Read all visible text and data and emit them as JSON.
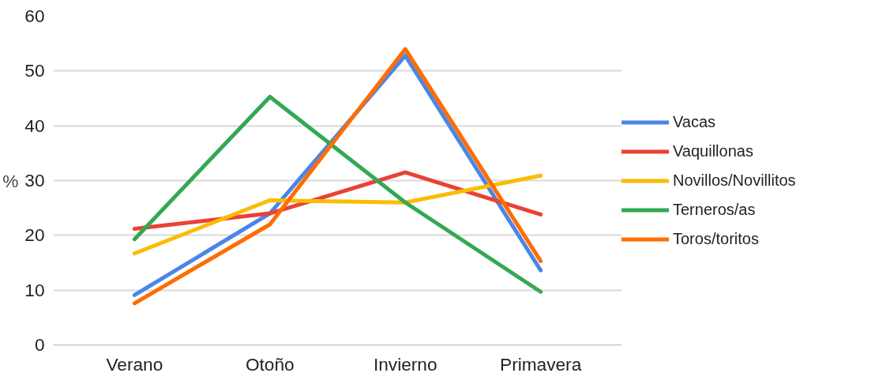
{
  "chart_data": {
    "type": "line",
    "ylabel": "%",
    "categories": [
      "Verano",
      "Otoño",
      "Invierno",
      "Primavera"
    ],
    "ylim": [
      0,
      60
    ],
    "yticks": [
      0,
      10,
      20,
      30,
      40,
      50,
      60
    ],
    "grid": "y",
    "legend": "right",
    "marker": "none",
    "line_style": "solid",
    "series": [
      {
        "name": "Vacas",
        "color": "#4a86e8",
        "values": [
          9.1,
          24,
          52.8,
          13.6
        ]
      },
      {
        "name": "Vaquillonas",
        "color": "#e94235",
        "values": [
          21.2,
          24,
          31.5,
          23.8
        ]
      },
      {
        "name": "Novillos/Novillitos",
        "color": "#fbbc04",
        "values": [
          16.7,
          26.4,
          26,
          30.9
        ]
      },
      {
        "name": "Terneros/as",
        "color": "#34a853",
        "values": [
          19.3,
          45.3,
          26,
          9.7
        ]
      },
      {
        "name": "Toros/toritos",
        "color": "#ff6d01",
        "values": [
          7.6,
          22,
          54,
          15.3
        ]
      }
    ]
  }
}
